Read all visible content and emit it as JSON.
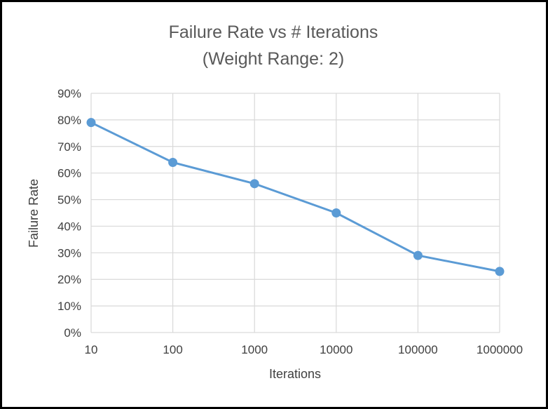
{
  "chart_data": {
    "type": "line",
    "title": "Failure Rate vs # Iterations",
    "subtitle": "(Weight Range: 2)",
    "xlabel": "Iterations",
    "ylabel": "Failure Rate",
    "categories": [
      "10",
      "100",
      "1000",
      "10000",
      "100000",
      "1000000"
    ],
    "x_scale": "log",
    "ylim": [
      0,
      0.9
    ],
    "y_ticks": [
      "0%",
      "10%",
      "20%",
      "30%",
      "40%",
      "50%",
      "60%",
      "70%",
      "80%",
      "90%"
    ],
    "grid": true,
    "legend": "none",
    "series": [
      {
        "values": [
          0.79,
          0.64,
          0.56,
          0.45,
          0.29,
          0.23
        ]
      }
    ],
    "colors": {
      "line": "#5b9bd5",
      "grid": "#d9d9d9"
    }
  }
}
